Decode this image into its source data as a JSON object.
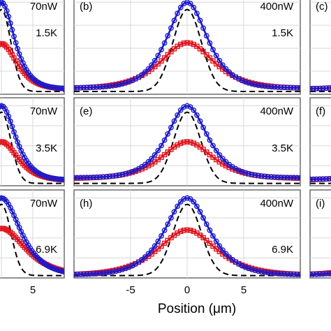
{
  "chart_data": {
    "type": "scatter",
    "xlabel": "Position (μm)",
    "x_tick_labels": [
      "-5",
      "0",
      "5"
    ],
    "x_ticks": [
      -5,
      0,
      5
    ],
    "xlim": [
      -10,
      10
    ],
    "ylim": [
      0,
      1.1
    ],
    "colors": {
      "blue": "#1a1acc",
      "red": "#e0141e",
      "dashed": "#000000"
    },
    "panels": [
      {
        "label": "",
        "power": "70nW",
        "temperature": "1.5K",
        "col": 0,
        "row": 0,
        "blue_amp": 1.0,
        "blue_width": 2.2,
        "red_amp": 0.55,
        "red_width": 2.6,
        "dash_width": 1.5,
        "baseline": 0.06
      },
      {
        "label": "(b)",
        "power": "400nW",
        "temperature": "1.5K",
        "col": 1,
        "row": 0,
        "blue_amp": 1.0,
        "blue_width": 1.9,
        "red_amp": 0.56,
        "red_width": 2.5,
        "dash_width": 1.25,
        "baseline": 0.07
      },
      {
        "label": "(c)",
        "power": "",
        "temperature": "",
        "col": 2,
        "row": 0,
        "blue_amp": 1.0,
        "blue_width": 2.0,
        "red_amp": 0.55,
        "red_width": 2.5,
        "dash_width": 1.3,
        "baseline": 0.06
      },
      {
        "label": "",
        "power": "70nW",
        "temperature": "3.5K",
        "col": 0,
        "row": 1,
        "blue_amp": 1.0,
        "blue_width": 2.4,
        "red_amp": 0.55,
        "red_width": 2.8,
        "dash_width": 1.5,
        "baseline": 0.07
      },
      {
        "label": "(e)",
        "power": "400nW",
        "temperature": "3.5K",
        "col": 1,
        "row": 1,
        "blue_amp": 1.0,
        "blue_width": 1.9,
        "red_amp": 0.55,
        "red_width": 2.4,
        "dash_width": 1.2,
        "baseline": 0.1
      },
      {
        "label": "(f)",
        "power": "",
        "temperature": "",
        "col": 2,
        "row": 1,
        "blue_amp": 1.0,
        "blue_width": 2.0,
        "red_amp": 0.55,
        "red_width": 2.5,
        "dash_width": 1.3,
        "baseline": 0.08
      },
      {
        "label": "",
        "power": "70nW",
        "temperature": "6.9K",
        "col": 0,
        "row": 2,
        "blue_amp": 1.0,
        "blue_width": 3.2,
        "red_amp": 0.62,
        "red_width": 4.0,
        "dash_width": 1.5,
        "baseline": 0.04
      },
      {
        "label": "(h)",
        "power": "400nW",
        "temperature": "6.9K",
        "col": 1,
        "row": 2,
        "blue_amp": 1.0,
        "blue_width": 2.1,
        "red_amp": 0.6,
        "red_width": 2.7,
        "dash_width": 1.25,
        "baseline": 0.04
      },
      {
        "label": "(i)",
        "power": "",
        "temperature": "",
        "col": 2,
        "row": 2,
        "blue_amp": 1.0,
        "blue_width": 2.2,
        "red_amp": 0.6,
        "red_width": 2.8,
        "dash_width": 1.3,
        "baseline": 0.04
      }
    ]
  }
}
